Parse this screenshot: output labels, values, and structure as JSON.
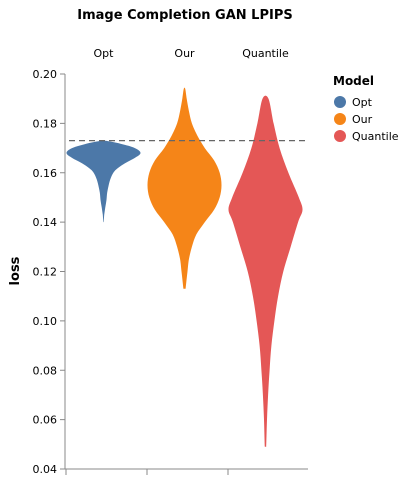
{
  "chart_data": {
    "type": "violin",
    "title": "Image Completion GAN LPIPS",
    "ylabel": "loss",
    "ylim": [
      0.04,
      0.2
    ],
    "yticks": [
      "0.04",
      "0.06",
      "0.08",
      "0.10",
      "0.12",
      "0.14",
      "0.16",
      "0.18",
      "0.20"
    ],
    "categories": [
      "Opt",
      "Our",
      "Quantile"
    ],
    "reference_line": {
      "y": 0.173,
      "style": "dashed"
    },
    "legend": {
      "title": "Model",
      "position": "right",
      "entries": [
        {
          "name": "Opt",
          "color": "#4c78a8"
        },
        {
          "name": "Our",
          "color": "#f58518"
        },
        {
          "name": "Quantile",
          "color": "#e45756"
        }
      ]
    },
    "series": [
      {
        "name": "Opt",
        "color": "#4c78a8",
        "density": [
          [
            0.14,
            0.005
          ],
          [
            0.143,
            0.02
          ],
          [
            0.146,
            0.05
          ],
          [
            0.149,
            0.08
          ],
          [
            0.152,
            0.1
          ],
          [
            0.155,
            0.14
          ],
          [
            0.158,
            0.2
          ],
          [
            0.161,
            0.32
          ],
          [
            0.164,
            0.6
          ],
          [
            0.166,
            0.85
          ],
          [
            0.168,
            1.0
          ],
          [
            0.17,
            0.85
          ],
          [
            0.172,
            0.4
          ],
          [
            0.173,
            0.05
          ]
        ]
      },
      {
        "name": "Our",
        "color": "#f58518",
        "density": [
          [
            0.113,
            0.03
          ],
          [
            0.12,
            0.08
          ],
          [
            0.125,
            0.12
          ],
          [
            0.13,
            0.2
          ],
          [
            0.135,
            0.32
          ],
          [
            0.14,
            0.55
          ],
          [
            0.145,
            0.8
          ],
          [
            0.15,
            0.95
          ],
          [
            0.155,
            1.0
          ],
          [
            0.16,
            0.95
          ],
          [
            0.165,
            0.8
          ],
          [
            0.17,
            0.55
          ],
          [
            0.175,
            0.35
          ],
          [
            0.18,
            0.2
          ],
          [
            0.185,
            0.12
          ],
          [
            0.19,
            0.06
          ],
          [
            0.194,
            0.02
          ]
        ]
      },
      {
        "name": "Quantile",
        "color": "#e45756",
        "density": [
          [
            0.049,
            0.02
          ],
          [
            0.06,
            0.04
          ],
          [
            0.07,
            0.07
          ],
          [
            0.08,
            0.11
          ],
          [
            0.09,
            0.16
          ],
          [
            0.1,
            0.24
          ],
          [
            0.11,
            0.34
          ],
          [
            0.12,
            0.48
          ],
          [
            0.13,
            0.68
          ],
          [
            0.14,
            0.88
          ],
          [
            0.145,
            1.0
          ],
          [
            0.15,
            0.9
          ],
          [
            0.16,
            0.62
          ],
          [
            0.17,
            0.38
          ],
          [
            0.18,
            0.22
          ],
          [
            0.19,
            0.08
          ]
        ]
      }
    ]
  }
}
